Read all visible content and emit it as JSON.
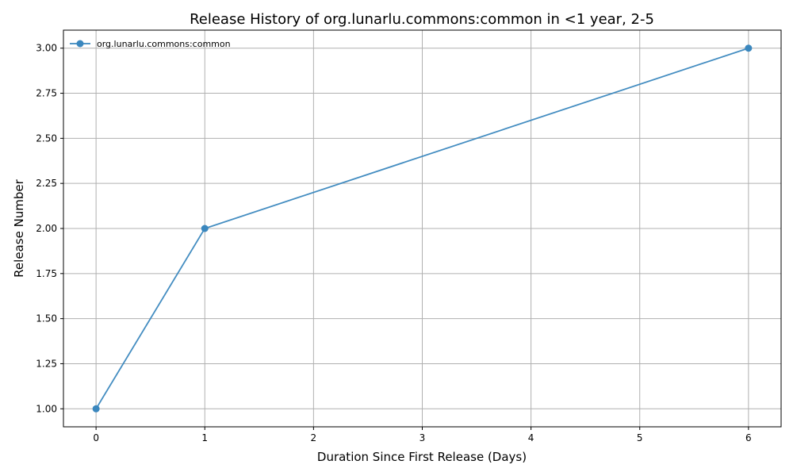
{
  "chart_data": {
    "type": "line",
    "title": "Release History of org.lunarlu.commons:common in <1 year, 2-5",
    "xlabel": "Duration Since First Release (Days)",
    "ylabel": "Release Number",
    "xlim": [
      -0.3,
      6.3
    ],
    "ylim": [
      0.9,
      3.1
    ],
    "xticks": [
      0,
      1,
      2,
      3,
      4,
      5,
      6
    ],
    "xtick_labels": [
      "0",
      "1",
      "2",
      "3",
      "4",
      "5",
      "6"
    ],
    "yticks": [
      1.0,
      1.25,
      1.5,
      1.75,
      2.0,
      2.25,
      2.5,
      2.75,
      3.0
    ],
    "ytick_labels": [
      "1.00",
      "1.25",
      "1.50",
      "1.75",
      "2.00",
      "2.25",
      "2.50",
      "2.75",
      "3.00"
    ],
    "grid": true,
    "legend_position": "top-left",
    "series": [
      {
        "name": "org.lunarlu.commons:common",
        "color": "#3a87be",
        "marker": "circle",
        "x": [
          0,
          1,
          6
        ],
        "y": [
          1,
          2,
          3
        ]
      }
    ]
  }
}
